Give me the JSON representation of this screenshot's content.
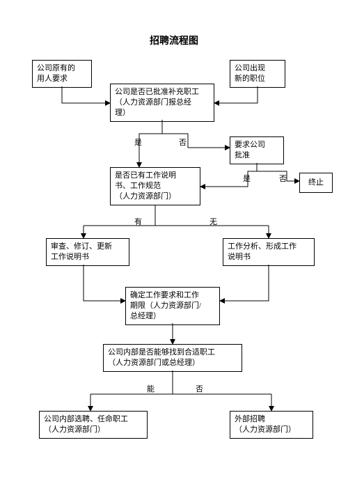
{
  "type": "flowchart",
  "title": "招聘流程图",
  "background_color": "#ffffff",
  "border_color": "#000000",
  "font_family": "SimSun",
  "node_fontsize": 11,
  "title_fontsize": 14,
  "nodes": {
    "n1": {
      "label": "公司原有的\n用人要求"
    },
    "n2": {
      "label": "公司出现\n新的职位"
    },
    "n3": {
      "label": "公司是否已批准补充职工\n（人力资源部门报总经\n理）"
    },
    "n4": {
      "label": "要求公司\n批准"
    },
    "n5": {
      "label": "终止"
    },
    "n6": {
      "label": "是否已有工作说明\n书、工作规范\n（人力资源部门）"
    },
    "n7": {
      "label": "审查、修订、更新\n工作说明书"
    },
    "n8": {
      "label": "工作分析、形成工作\n说明书"
    },
    "n9": {
      "label": "确定工作要求和工作\n期限（人力资源部门/\n总经理）"
    },
    "n10": {
      "label": "公司内部是否能够找到合适职工\n（人力资源部门或总经理）"
    },
    "n11": {
      "label": "公司内部选聘、任命职工\n（人力资源部门）"
    },
    "n12": {
      "label": "外部招聘\n（人力资源部门）"
    }
  },
  "edge_labels": {
    "e3yes": "是",
    "e3no": "否",
    "e4yes": "是",
    "e4no": "否",
    "e6yes": "有",
    "e6no": "无",
    "e10yes": "能",
    "e10no": "否"
  }
}
